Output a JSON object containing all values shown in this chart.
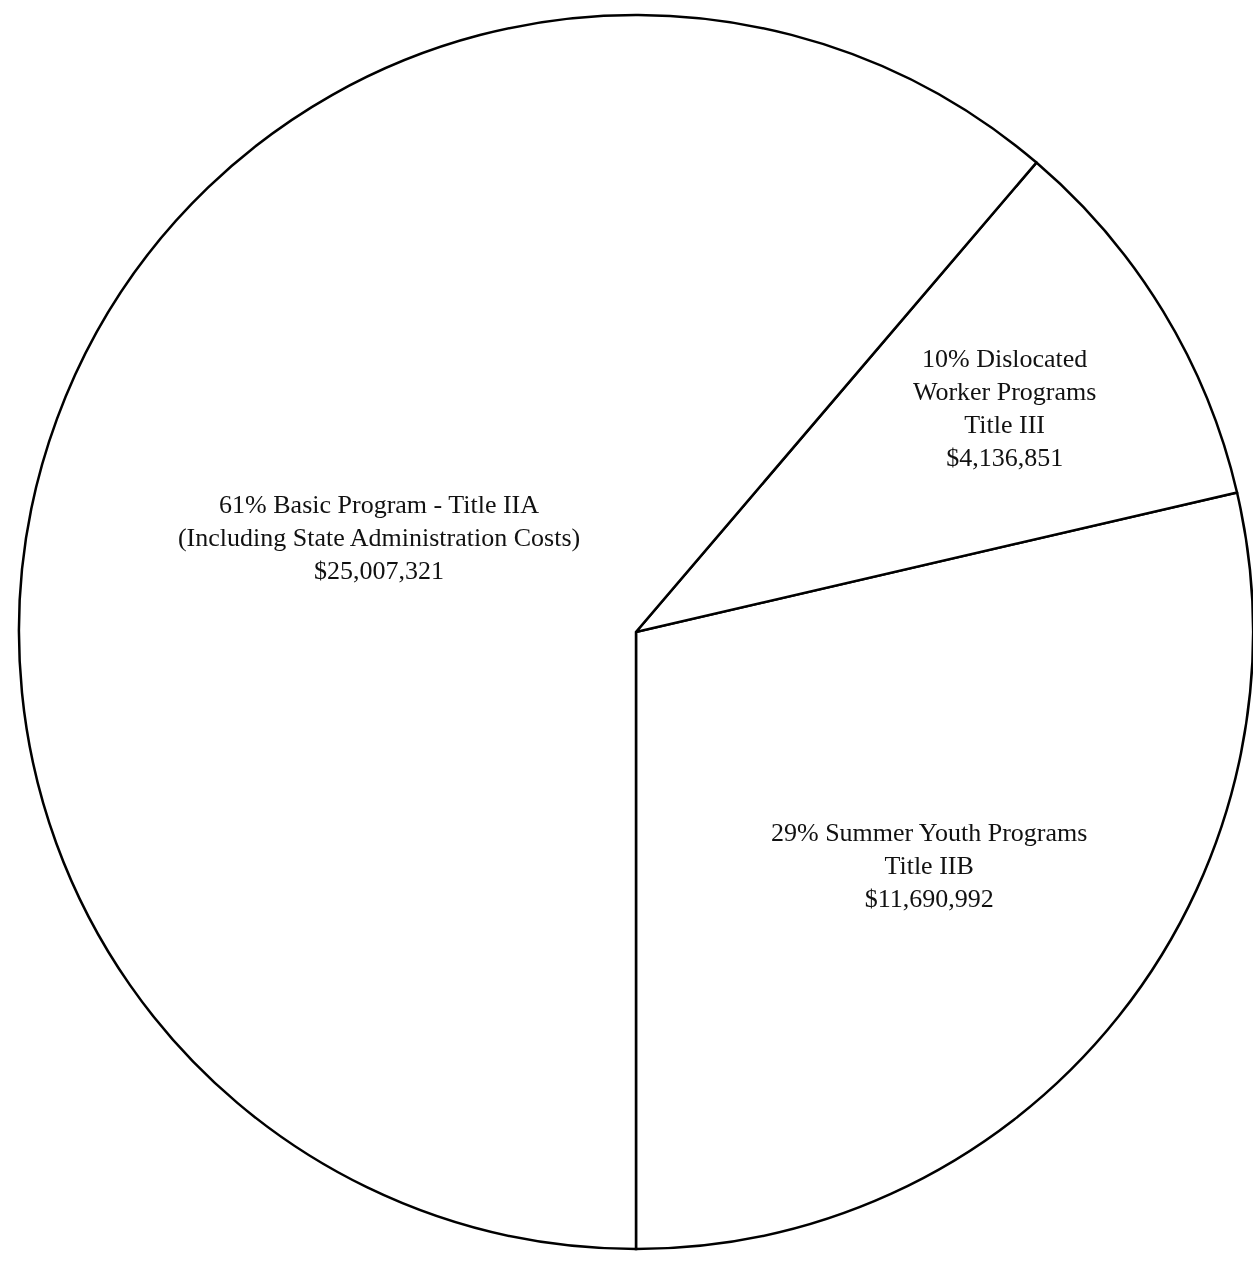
{
  "chart_data": {
    "type": "pie",
    "categories": [
      "29% Summer Youth Programs\nTitle IIB",
      "10% Dislocated\nWorker Programs\nTitle III",
      "61% Basic Program - Title IIA\n(Including State Administration Costs)"
    ],
    "values": [
      11690992,
      4136851,
      25007321
    ],
    "value_labels": [
      "$11,690,992",
      "$4,136,851",
      "$25,007,321"
    ],
    "colors": [
      "#ffffff",
      "#ffffff",
      "#ffffff"
    ]
  }
}
